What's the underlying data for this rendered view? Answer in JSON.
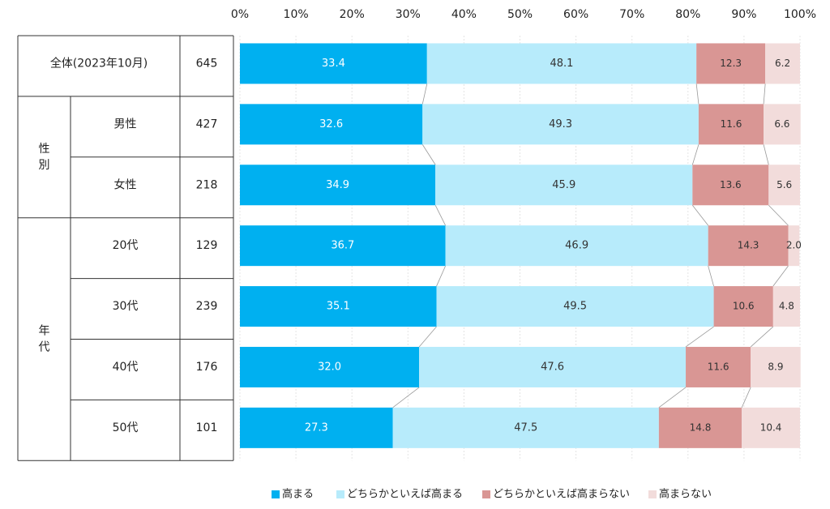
{
  "chart_data": {
    "type": "stacked_bar_h",
    "groups": [
      {
        "categories": [
          "全体(2023年10月)"
        ],
        "n": [
          645
        ]
      },
      {
        "label": "性別",
        "categories": [
          "男性",
          "女性"
        ],
        "n": [
          427,
          218
        ]
      },
      {
        "label": "年代",
        "categories": [
          "20代",
          "30代",
          "40代",
          "50代"
        ],
        "n": [
          129,
          239,
          176,
          101
        ]
      }
    ],
    "series": [
      {
        "name": "高まる",
        "color": "#00b0f0",
        "values": [
          33.4,
          32.6,
          34.9,
          36.7,
          35.1,
          32.0,
          27.3
        ],
        "value_labels": [
          "33.4",
          "32.6",
          "34.9",
          "36.7",
          "35.1",
          "32.0",
          "27.3"
        ]
      },
      {
        "name": "どちらかといえば高まる",
        "color": "#b7ebfb",
        "values": [
          48.1,
          49.3,
          45.9,
          46.9,
          49.5,
          47.6,
          47.5
        ],
        "value_labels": [
          "48.1",
          "49.3",
          "45.9",
          "46.9",
          "49.5",
          "47.6",
          "47.5"
        ]
      },
      {
        "name": "どちらかといえば高まらない",
        "color": "#d99694",
        "values": [
          12.3,
          11.6,
          13.6,
          14.3,
          10.6,
          11.6,
          14.8
        ],
        "value_labels": [
          "12.3",
          "11.6",
          "13.6",
          "14.3",
          "10.6",
          "11.6",
          "14.8"
        ]
      },
      {
        "name": "高まらない",
        "color": "#f2dcdb",
        "values": [
          6.2,
          6.6,
          5.6,
          2.0,
          4.8,
          8.9,
          10.4
        ],
        "value_labels": [
          "6.2",
          "6.6",
          "5.6",
          "2.0",
          "4.8",
          "8.9",
          "10.4"
        ]
      }
    ],
    "xlim": [
      0,
      100
    ],
    "xticks": [
      {
        "value": 0,
        "label": "0%"
      },
      {
        "value": 10,
        "label": "10%"
      },
      {
        "value": 20,
        "label": "20%"
      },
      {
        "value": 30,
        "label": "30%"
      },
      {
        "value": 40,
        "label": "40%"
      },
      {
        "value": 50,
        "label": "50%"
      },
      {
        "value": 60,
        "label": "60%"
      },
      {
        "value": 70,
        "label": "70%"
      },
      {
        "value": 80,
        "label": "80%"
      },
      {
        "value": 90,
        "label": "90%"
      },
      {
        "value": 100,
        "label": "100%"
      }
    ],
    "grid": true
  }
}
